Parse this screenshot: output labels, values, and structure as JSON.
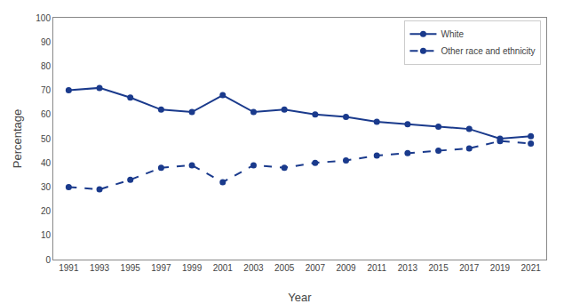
{
  "chart_data": {
    "type": "line",
    "x": [
      1991,
      1993,
      1995,
      1997,
      1999,
      2001,
      2003,
      2005,
      2007,
      2009,
      2011,
      2013,
      2015,
      2017,
      2019,
      2021
    ],
    "series": [
      {
        "name": "White",
        "color": "#1a3a8c",
        "line_style": "solid",
        "marker": "circle",
        "values": [
          70,
          71,
          67,
          62,
          61,
          68,
          61,
          62,
          60,
          59,
          57,
          56,
          55,
          54,
          50,
          51
        ]
      },
      {
        "name": "Other race and ethnicity",
        "color": "#1a3a8c",
        "line_style": "dashed",
        "marker": "circle",
        "values": [
          30,
          29,
          33,
          38,
          39,
          32,
          39,
          38,
          40,
          41,
          43,
          44,
          45,
          46,
          49,
          48
        ]
      }
    ],
    "xlabel": "Year",
    "ylabel": "Percentage",
    "xlim": [
      1990,
      2022
    ],
    "xticks": [
      1991,
      1993,
      1995,
      1997,
      1999,
      2001,
      2003,
      2005,
      2007,
      2009,
      2011,
      2013,
      2015,
      2017,
      2019,
      2021
    ],
    "ylim": [
      0,
      100
    ],
    "yticks": [
      0,
      10,
      20,
      30,
      40,
      50,
      60,
      70,
      80,
      90,
      100
    ],
    "legend": "upper right",
    "grid": false
  }
}
